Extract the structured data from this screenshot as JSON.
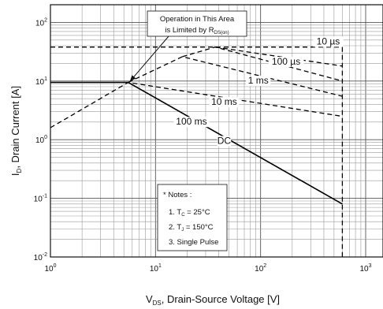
{
  "chart_data": {
    "type": "line",
    "title": "",
    "xlabel": {
      "main": "V",
      "sub": "DS",
      "rest": ", Drain-Source Voltage [V]"
    },
    "ylabel": {
      "main": "I",
      "sub": "D",
      "rest": ", Drain Current [A]"
    },
    "xscale": "log",
    "yscale": "log",
    "xlim": [
      1,
      1000
    ],
    "ylim": [
      0.01,
      200
    ],
    "grid": true,
    "x_ticks": [
      {
        "base": "10",
        "exp": "0"
      },
      {
        "base": "10",
        "exp": "1"
      },
      {
        "base": "10",
        "exp": "2"
      },
      {
        "base": "10",
        "exp": "3"
      }
    ],
    "y_ticks": [
      {
        "base": "10",
        "exp": "-2"
      },
      {
        "base": "10",
        "exp": "-1"
      },
      {
        "base": "10",
        "exp": "0"
      },
      {
        "base": "10",
        "exp": "1"
      },
      {
        "base": "10",
        "exp": "2"
      }
    ],
    "series": [
      {
        "name": "DC",
        "style": "solid",
        "x": [
          1,
          5.5,
          600
        ],
        "y": [
          9.5,
          9.5,
          0.08
        ]
      },
      {
        "name": "100 ms",
        "style": "dashed",
        "x": [
          1,
          5.5,
          600
        ],
        "y": [
          1.6,
          9.5,
          2.5
        ]
      },
      {
        "name": "10 ms",
        "style": "dashed",
        "x": [
          5.5,
          18,
          600
        ],
        "y": [
          9.5,
          26,
          5.5
        ]
      },
      {
        "name": "1 ms",
        "style": "dashed",
        "x": [
          18,
          37,
          600
        ],
        "y": [
          26,
          38,
          10
        ]
      },
      {
        "name": "100 µs",
        "style": "dashed",
        "x": [
          37,
          600
        ],
        "y": [
          38,
          18
        ]
      },
      {
        "name": "10 µs",
        "style": "dashed",
        "x": [
          1,
          600
        ],
        "y": [
          38,
          38
        ]
      },
      {
        "name": "",
        "style": "dashed",
        "x": [
          600,
          600
        ],
        "y": [
          38,
          0.01
        ]
      }
    ],
    "curve_labels": [
      {
        "text": "10 µs",
        "x": 440,
        "y": 42
      },
      {
        "text": "100 µs",
        "x": 175,
        "y": 19
      },
      {
        "text": "1 ms",
        "x": 95,
        "y": 9
      },
      {
        "text": "10 ms",
        "x": 45,
        "y": 3.9
      },
      {
        "text": "100 ms",
        "x": 22,
        "y": 1.8
      },
      {
        "text": "DC",
        "x": 45,
        "y": 0.85
      }
    ],
    "annotation": {
      "line1": "Operation in This Area",
      "line2_main": "is Limited by R",
      "line2_sub": "DS(on)",
      "arrow_to": {
        "x": 5.5,
        "y": 9.5
      }
    },
    "notes": {
      "title": "* Notes :",
      "items": [
        {
          "prefix": "1. T",
          "sub": "C",
          "rest": " = 25°C"
        },
        {
          "prefix": "2. T",
          "sub": "J",
          "rest": " = 150°C"
        },
        {
          "prefix": "3. Single Pulse",
          "sub": "",
          "rest": ""
        }
      ]
    }
  }
}
